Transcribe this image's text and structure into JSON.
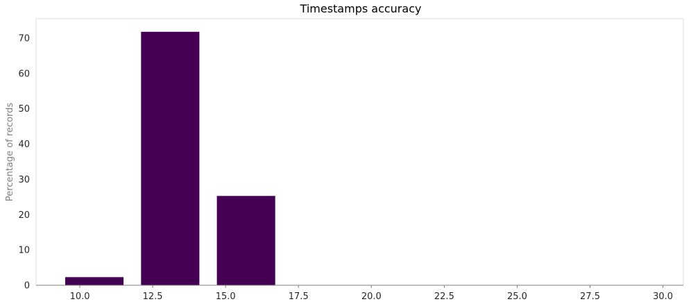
{
  "chart_data": {
    "type": "bar",
    "title": "Timestamps accuracy",
    "xlabel": "",
    "ylabel": "Percentage of records",
    "bars": [
      {
        "x": 10.5,
        "width": 2.0,
        "value": 2.3
      },
      {
        "x": 13.1,
        "width": 2.0,
        "value": 71.8
      },
      {
        "x": 15.7,
        "width": 2.0,
        "value": 25.3
      }
    ],
    "xlim": [
      8.5,
      30.7
    ],
    "ylim": [
      0,
      75.5
    ],
    "xticks": [
      "10.0",
      "12.5",
      "15.0",
      "17.5",
      "20.0",
      "22.5",
      "25.0",
      "27.5",
      "30.0"
    ],
    "xtick_values": [
      10.0,
      12.5,
      15.0,
      17.5,
      20.0,
      22.5,
      25.0,
      27.5,
      30.0
    ],
    "yticks": [
      "0",
      "10",
      "20",
      "30",
      "40",
      "50",
      "60",
      "70"
    ],
    "ytick_values": [
      0,
      10,
      20,
      30,
      40,
      50,
      60,
      70
    ],
    "grid": false,
    "legend": "none",
    "colors": {
      "bar": "#440154",
      "frame": "#dddddd",
      "axis": "#808080",
      "tick_text": "#262626",
      "ylabel": "#808080"
    }
  }
}
